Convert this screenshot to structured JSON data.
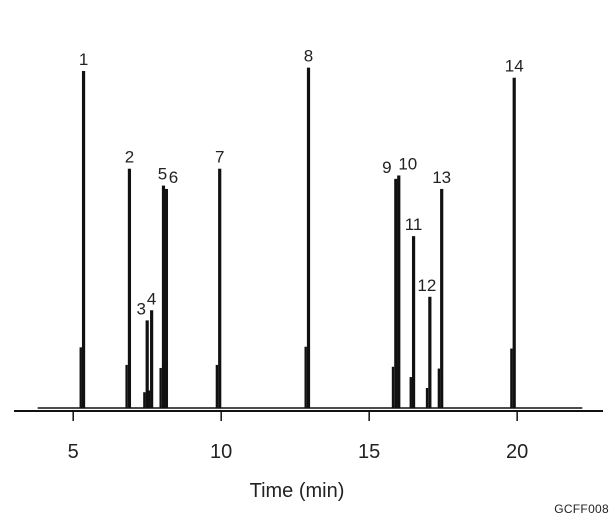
{
  "figure": {
    "code": "GCFF008"
  },
  "chart_data": {
    "type": "line",
    "title": "",
    "xlabel": "Time (min)",
    "ylabel": "",
    "xlim": [
      3.0,
      22.9
    ],
    "ylim": [
      0,
      100
    ],
    "x_ticks": [
      5,
      10,
      15,
      20
    ],
    "x_tick_labels": [
      "5",
      "10",
      "15",
      "20"
    ],
    "grid": false,
    "legend": "none",
    "trace_color": "#111111",
    "baseline": 0,
    "peaks": [
      {
        "label": "1",
        "time": 5.35,
        "height": 100
      },
      {
        "label": "2",
        "time": 6.9,
        "height": 71
      },
      {
        "label": "3",
        "time": 7.5,
        "height": 26
      },
      {
        "label": "4",
        "time": 7.65,
        "height": 29
      },
      {
        "label": "5",
        "time": 8.05,
        "height": 66
      },
      {
        "label": "6",
        "time": 8.15,
        "height": 65
      },
      {
        "label": "7",
        "time": 9.95,
        "height": 71
      },
      {
        "label": "8",
        "time": 12.95,
        "height": 101
      },
      {
        "label": "9",
        "time": 15.9,
        "height": 68
      },
      {
        "label": "10",
        "time": 16.0,
        "height": 69
      },
      {
        "label": "11",
        "time": 16.5,
        "height": 51
      },
      {
        "label": "12",
        "time": 17.05,
        "height": 33
      },
      {
        "label": "13",
        "time": 17.45,
        "height": 65
      },
      {
        "label": "14",
        "time": 19.9,
        "height": 98
      }
    ]
  }
}
